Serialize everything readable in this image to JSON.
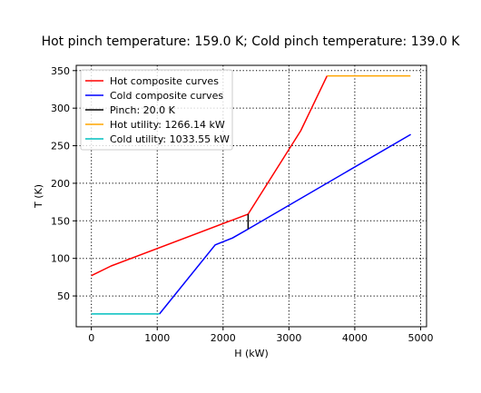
{
  "chart_data": {
    "type": "line",
    "title": "Hot pinch temperature: 159.0 K;  Cold pinch temperature: 139.0 K",
    "xlabel": "H (kW)",
    "ylabel": "T (K)",
    "xlim": [
      -230,
      5090
    ],
    "ylim": [
      9,
      357
    ],
    "xticks": [
      0,
      1000,
      2000,
      3000,
      4000,
      5000
    ],
    "yticks": [
      50,
      100,
      150,
      200,
      250,
      300,
      350
    ],
    "grid": true,
    "legend_position": "top-left",
    "series": [
      {
        "name": "Hot composite curves",
        "color": "#ff0000",
        "x": [
          0,
          300,
          2380,
          3180,
          3580
        ],
        "y": [
          77,
          90,
          159,
          270,
          343
        ]
      },
      {
        "name": "Cold composite curves",
        "color": "#0000ff",
        "x": [
          1034,
          1880,
          2140,
          2380,
          4850
        ],
        "y": [
          26,
          118,
          127,
          139,
          265
        ]
      },
      {
        "name": "Pinch: 20.0 K",
        "color": "#000000",
        "x": [
          2380,
          2380
        ],
        "y": [
          139,
          159
        ]
      },
      {
        "name": "Hot utility: 1266.14 kW",
        "color": "#ffa500",
        "x": [
          3580,
          4846
        ],
        "y": [
          343,
          343
        ]
      },
      {
        "name": "Cold utility: 1033.55 kW",
        "color": "#00bfbf",
        "x": [
          0,
          1034
        ],
        "y": [
          26,
          26
        ]
      }
    ]
  }
}
